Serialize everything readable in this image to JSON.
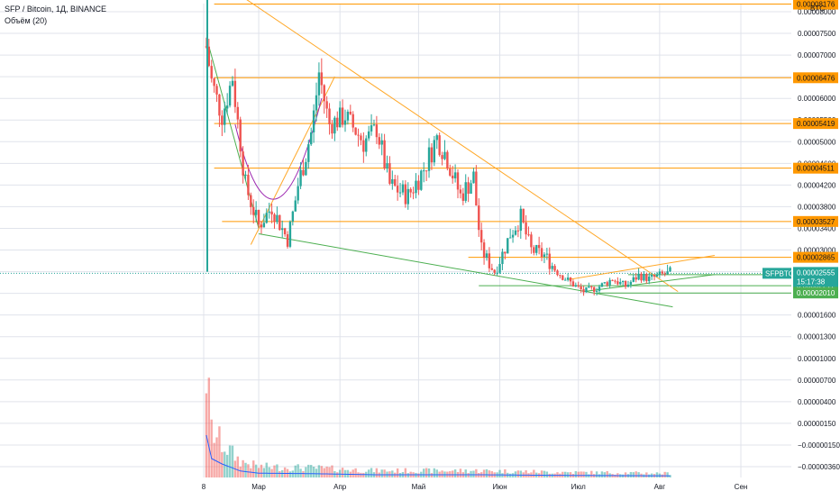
{
  "header": {
    "title": "SFP / Bitcoin, 1Д, BINANCE",
    "indicator": "Объём (20)",
    "currency_badge": "BTC"
  },
  "colors": {
    "up": "#26a69a",
    "down": "#ef5350",
    "level_orange": "#ff9800",
    "level_green": "#4caf50",
    "trend_green": "#4caf50",
    "trend_orange": "#ffa726",
    "arc_purple": "#9c27b0",
    "volume_ma": "#2962ff",
    "grid": "#e0e3eb",
    "axis_text": "#131722",
    "dotted_price": "#26a69a"
  },
  "chart_data": {
    "type": "candlestick",
    "symbol": "SFPBTC",
    "exchange": "BINANCE",
    "timeframe": "1Д",
    "x_labels": [
      "8",
      "Мар",
      "Апр",
      "Май",
      "Июн",
      "Июл",
      "Авг",
      "Сен"
    ],
    "x_label_dates": [
      "2021-02-08",
      "2021-03-01",
      "2021-04-01",
      "2021-05-01",
      "2021-06-01",
      "2021-07-01",
      "2021-08-01",
      "2021-09-01"
    ],
    "y_ticks": [
      "0.00008000",
      "0.00007500",
      "0.00007000",
      "0.00006500",
      "0.00006000",
      "0.00005500",
      "0.00005000",
      "0.00004600",
      "0.00004200",
      "0.00003800",
      "0.00003400",
      "0.00003000",
      "0.00002600",
      "0.00002000",
      "0.00001600",
      "0.00001300",
      "0.00001000",
      "0.00000700",
      "0.00000400",
      "0.00000150",
      "−0.00000150",
      "−0.00000360"
    ],
    "y_scale": "log",
    "current_price": {
      "label": "SFPBTC",
      "value": "0.00002555",
      "countdown": "15:17:38"
    },
    "orange_levels": [
      "0.00008176",
      "0.00006476",
      "0.00005419",
      "0.00004511",
      "0.00003527",
      "0.00002865"
    ],
    "green_levels": [
      "0.00002517",
      "0.00002211",
      "0.00002010"
    ],
    "price_path": [
      [
        "2021-02-08",
        2.6e-05
      ],
      [
        "2021-02-09",
        7.2e-05
      ],
      [
        "2021-02-11",
        6.4e-05
      ],
      [
        "2021-02-15",
        5.6e-05
      ],
      [
        "2021-02-19",
        6.5e-05
      ],
      [
        "2021-02-24",
        4.2e-05
      ],
      [
        "2021-03-01",
        3.45e-05
      ],
      [
        "2021-03-06",
        3.8e-05
      ],
      [
        "2021-03-12",
        3.2e-05
      ],
      [
        "2021-03-16",
        4.2e-05
      ],
      [
        "2021-03-21",
        5.2e-05
      ],
      [
        "2021-03-24",
        6.6e-05
      ],
      [
        "2021-03-28",
        5.4e-05
      ],
      [
        "2021-04-03",
        5.6e-05
      ],
      [
        "2021-04-10",
        5e-05
      ],
      [
        "2021-04-15",
        5.3e-05
      ],
      [
        "2021-04-20",
        4.2e-05
      ],
      [
        "2021-04-27",
        4e-05
      ],
      [
        "2021-05-03",
        4.5e-05
      ],
      [
        "2021-05-08",
        5.1e-05
      ],
      [
        "2021-05-12",
        4.7e-05
      ],
      [
        "2021-05-17",
        4e-05
      ],
      [
        "2021-05-22",
        4.35e-05
      ],
      [
        "2021-05-25",
        3e-05
      ],
      [
        "2021-05-30",
        2.6e-05
      ],
      [
        "2021-06-05",
        3.3e-05
      ],
      [
        "2021-06-09",
        3.6e-05
      ],
      [
        "2021-06-13",
        3e-05
      ],
      [
        "2021-06-18",
        2.9e-05
      ],
      [
        "2021-06-23",
        2.6e-05
      ],
      [
        "2021-06-28",
        2.3e-05
      ],
      [
        "2021-07-03",
        2.05e-05
      ],
      [
        "2021-07-08",
        2.15e-05
      ],
      [
        "2021-07-14",
        2.4e-05
      ],
      [
        "2021-07-19",
        2.2e-05
      ],
      [
        "2021-07-24",
        2.5e-05
      ],
      [
        "2021-07-28",
        2.4e-05
      ],
      [
        "2021-08-02",
        2.52e-05
      ],
      [
        "2021-08-05",
        2.56e-05
      ]
    ],
    "volume_profile": [
      [
        "2021-02-08",
        1.0
      ],
      [
        "2021-02-11",
        0.35
      ],
      [
        "2021-02-15",
        0.25
      ],
      [
        "2021-02-22",
        0.12
      ],
      [
        "2021-03-01",
        0.08
      ],
      [
        "2021-03-22",
        0.07
      ],
      [
        "2021-04-15",
        0.05
      ],
      [
        "2021-05-25",
        0.05
      ],
      [
        "2021-06-20",
        0.04
      ],
      [
        "2021-08-05",
        0.03
      ]
    ],
    "grid": true,
    "legend": "top-left"
  }
}
